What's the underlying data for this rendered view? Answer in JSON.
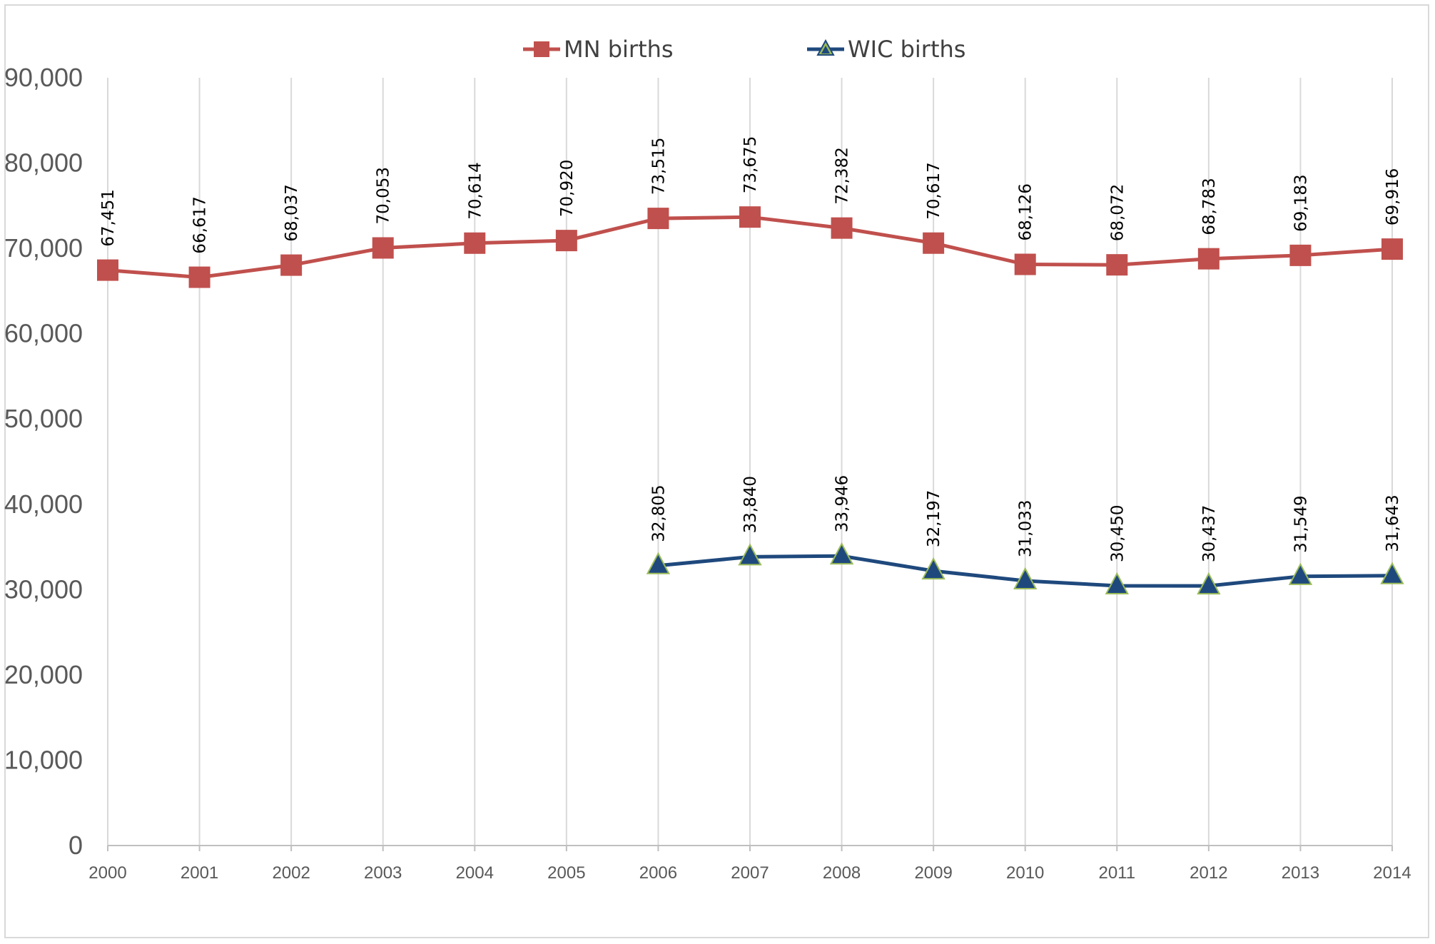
{
  "chart_data": {
    "type": "line",
    "title": "",
    "xlabel": "",
    "ylabel": "",
    "ylim": [
      0,
      90000
    ],
    "yticks": [
      0,
      10000,
      20000,
      30000,
      40000,
      50000,
      60000,
      70000,
      80000,
      90000
    ],
    "ytick_labels": [
      "0",
      "10,000",
      "20,000",
      "30,000",
      "40,000",
      "50,000",
      "60,000",
      "70,000",
      "80,000",
      "90,000"
    ],
    "categories": [
      "2000",
      "2001",
      "2002",
      "2003",
      "2004",
      "2005",
      "2006",
      "2007",
      "2008",
      "2009",
      "2010",
      "2011",
      "2012",
      "2013",
      "2014"
    ],
    "grid": "vertical",
    "legend_position": "top-center",
    "series": [
      {
        "name": "MN births",
        "color": "#c0504d",
        "marker": "square",
        "values": [
          67451,
          66617,
          68037,
          70053,
          70614,
          70920,
          73515,
          73675,
          72382,
          70617,
          68126,
          68072,
          68783,
          69183,
          69916
        ],
        "labels": [
          "67,451",
          "66,617",
          "68,037",
          "70,053",
          "70,614",
          "70,920",
          "73,515",
          "73,675",
          "72,382",
          "70,617",
          "68,126",
          "68,072",
          "68,783",
          "69,183",
          "69,916"
        ]
      },
      {
        "name": "WIC births",
        "color": "#1f497d",
        "marker": "triangle",
        "marker_edge_color": "#9bbb59",
        "values": [
          null,
          null,
          null,
          null,
          null,
          null,
          32805,
          33840,
          33946,
          32197,
          31033,
          30450,
          30437,
          31549,
          31643
        ],
        "labels": [
          null,
          null,
          null,
          null,
          null,
          null,
          "32,805",
          "33,840",
          "33,946",
          "32,197",
          "31,033",
          "30,450",
          "30,437",
          "31,549",
          "31,643"
        ]
      }
    ]
  }
}
